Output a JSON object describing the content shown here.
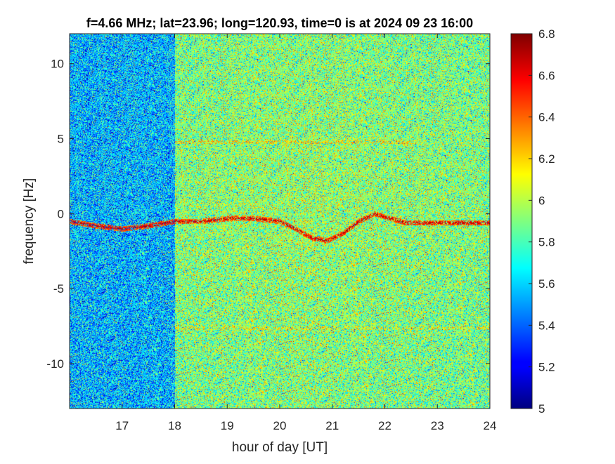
{
  "chart_data": {
    "type": "heatmap",
    "title": "f=4.66 MHz;  lat=23.96; long=120.93, time=0 is at 2024 09 23 16:00",
    "xlabel": "hour of day [UT]",
    "ylabel": "frequency [Hz]",
    "xlim": [
      16,
      24
    ],
    "ylim": [
      -13,
      12
    ],
    "x_ticks": [
      17,
      18,
      19,
      20,
      21,
      22,
      23,
      24
    ],
    "x_tick_labels": [
      "17",
      "18",
      "19",
      "20",
      "21",
      "22",
      "23",
      "24"
    ],
    "y_ticks": [
      10,
      5,
      0,
      -5,
      -10
    ],
    "y_tick_labels": [
      "10",
      "5",
      "0",
      "-5",
      "-10"
    ],
    "colorbar": {
      "colormap": "jet",
      "range": [
        5,
        6.8
      ],
      "ticks": [
        6.8,
        6.6,
        6.4,
        6.2,
        6,
        5.8,
        5.6,
        5.4,
        5.2,
        5
      ],
      "tick_labels": [
        "6.8",
        "6.6",
        "6.4",
        "6.2",
        "6",
        "5.8",
        "5.6",
        "5.4",
        "5.2",
        "5"
      ]
    },
    "features": {
      "low_intensity_region_x": [
        16,
        18
      ],
      "background_level_before_18": 5.55,
      "background_level_after_18": 5.9,
      "doppler_trace": {
        "x": [
          16,
          16.5,
          17,
          17.5,
          18,
          18.5,
          19,
          19.5,
          20,
          20.3,
          20.6,
          20.9,
          21.2,
          21.5,
          21.8,
          22.1,
          22.4,
          23,
          23.5,
          24
        ],
        "y": [
          -0.5,
          -0.8,
          -1.0,
          -0.8,
          -0.5,
          -0.5,
          -0.3,
          -0.3,
          -0.5,
          -1.0,
          -1.6,
          -1.8,
          -1.3,
          -0.5,
          0,
          -0.3,
          -0.6,
          -0.6,
          -0.6,
          -0.6
        ],
        "value": 6.7
      }
    }
  }
}
